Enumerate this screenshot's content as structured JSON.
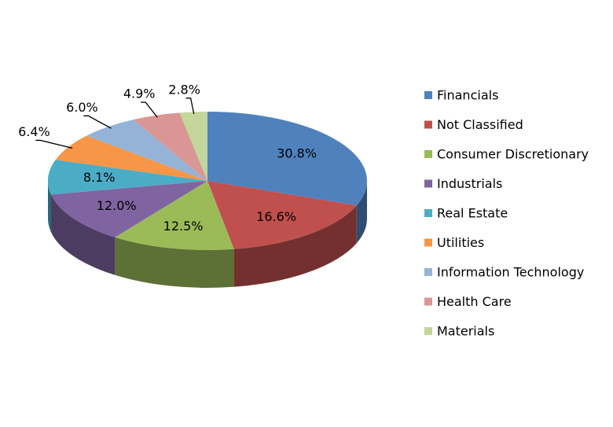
{
  "chart_data": {
    "type": "pie",
    "categories": [
      "Financials",
      "Not Classified",
      "Consumer Discretionary",
      "Industrials",
      "Real Estate",
      "Utilities",
      "Information Technology",
      "Health Care",
      "Materials"
    ],
    "values": [
      30.8,
      16.6,
      12.5,
      12.0,
      8.1,
      6.4,
      6.0,
      4.9,
      2.8
    ],
    "value_labels": [
      "30.8%",
      "16.6%",
      "12.5%",
      "12.0%",
      "8.1%",
      "6.4%",
      "6.0%",
      "4.9%",
      "2.8%"
    ],
    "colors": [
      "#4f81bd",
      "#c0504d",
      "#9bbb59",
      "#8064a2",
      "#4bacc6",
      "#f79646",
      "#95b3d7",
      "#d99694",
      "#c3d69b"
    ],
    "legend": "right"
  }
}
